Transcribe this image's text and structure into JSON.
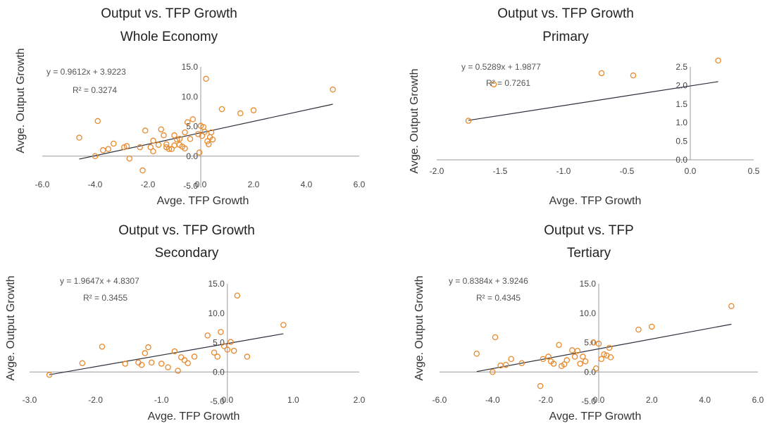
{
  "chart_data": [
    {
      "type": "scatter",
      "title": "Output vs. TFP Growth",
      "subtitle": "Whole Economy",
      "xlabel": "Avge. TFP Growth",
      "ylabel": "Avge. Output Growth",
      "xlim": [
        -6,
        6
      ],
      "ylim": [
        -5,
        15
      ],
      "xticks": [
        "-6.0",
        "-4.0",
        "-2.0",
        "0.0",
        "2.0",
        "4.0",
        "6.0"
      ],
      "yticks": [
        "-5.0",
        "0.0",
        "5.0",
        "10.0",
        "15.0"
      ],
      "equation": "y = 0.9612x + 3.9223",
      "r2_label": "R² = 0.3274",
      "trendline": {
        "slope": 0.9612,
        "intercept": 3.9223
      },
      "colors": {
        "points": "#e8892b",
        "trendline": "#2b2f3a"
      },
      "points": [
        [
          -4.6,
          3.1
        ],
        [
          -4.0,
          0.0
        ],
        [
          -3.9,
          5.9
        ],
        [
          -3.7,
          1.0
        ],
        [
          -3.5,
          1.2
        ],
        [
          -3.3,
          2.1
        ],
        [
          -2.9,
          1.5
        ],
        [
          -2.8,
          1.7
        ],
        [
          -2.7,
          -0.4
        ],
        [
          -2.3,
          1.5
        ],
        [
          -2.2,
          -2.4
        ],
        [
          -2.1,
          4.3
        ],
        [
          -1.9,
          1.5
        ],
        [
          -1.8,
          0.8
        ],
        [
          -1.8,
          2.6
        ],
        [
          -1.6,
          1.9
        ],
        [
          -1.5,
          4.5
        ],
        [
          -1.4,
          3.5
        ],
        [
          -1.3,
          2.0
        ],
        [
          -1.3,
          1.5
        ],
        [
          -1.2,
          1.2
        ],
        [
          -1.1,
          1.2
        ],
        [
          -1.0,
          3.5
        ],
        [
          -1.0,
          1.8
        ],
        [
          -0.9,
          2.8
        ],
        [
          -0.8,
          2.9
        ],
        [
          -0.8,
          1.9
        ],
        [
          -0.7,
          1.6
        ],
        [
          -0.6,
          4.0
        ],
        [
          -0.6,
          1.3
        ],
        [
          -0.5,
          5.7
        ],
        [
          -0.4,
          2.9
        ],
        [
          -0.3,
          6.2
        ],
        [
          -0.1,
          3.7
        ],
        [
          0.0,
          5.1
        ],
        [
          0.05,
          3.4
        ],
        [
          0.1,
          4.9
        ],
        [
          0.15,
          4.1
        ],
        [
          0.2,
          13.0
        ],
        [
          0.25,
          2.5
        ],
        [
          0.3,
          2.0
        ],
        [
          0.35,
          3.2
        ],
        [
          0.4,
          4.0
        ],
        [
          0.45,
          2.8
        ],
        [
          -0.05,
          0.6
        ],
        [
          0.8,
          7.9
        ],
        [
          1.5,
          7.2
        ],
        [
          2.0,
          7.7
        ],
        [
          5.0,
          11.2
        ]
      ]
    },
    {
      "type": "scatter",
      "title": "Output vs. TFP Growth",
      "subtitle": "Primary",
      "xlabel": "Avge. TFP Growth",
      "ylabel": "Avge. Output Growth",
      "xlim": [
        -2,
        0.5
      ],
      "ylim": [
        0,
        2.5
      ],
      "xticks": [
        "-2.0",
        "-1.5",
        "-1.0",
        "-0.5",
        "0.0",
        "0.5"
      ],
      "yticks": [
        "0.0",
        "0.5",
        "1.0",
        "1.5",
        "2.0",
        "2.5"
      ],
      "equation": "y = 0.5289x + 1.9877",
      "r2_label": "R² = 0.7261",
      "trendline": {
        "slope": 0.5289,
        "intercept": 1.9877
      },
      "colors": {
        "points": "#e8892b",
        "trendline": "#2b2f3a"
      },
      "points": [
        [
          -1.75,
          1.05
        ],
        [
          -1.55,
          2.03
        ],
        [
          -0.7,
          2.33
        ],
        [
          -0.45,
          2.27
        ],
        [
          0.22,
          2.67
        ]
      ]
    },
    {
      "type": "scatter",
      "title": "Output vs. TFP Growth",
      "subtitle": "Secondary",
      "xlabel": "Avge. TFP Growth",
      "ylabel": "Avge. Output Growth",
      "xlim": [
        -3,
        2
      ],
      "ylim": [
        -5,
        15
      ],
      "xticks": [
        "-3.0",
        "-2.0",
        "-1.0",
        "0.0",
        "1.0",
        "2.0"
      ],
      "yticks": [
        "-5.0",
        "0.0",
        "5.0",
        "10.0",
        "15.0"
      ],
      "equation": "y = 1.9647x + 4.8307",
      "r2_label": "R² = 0.3455",
      "trendline": {
        "slope": 1.9647,
        "intercept": 4.8307
      },
      "colors": {
        "points": "#e8892b",
        "trendline": "#2b2f3a"
      },
      "points": [
        [
          -2.7,
          -0.5
        ],
        [
          -2.2,
          1.5
        ],
        [
          -1.9,
          4.3
        ],
        [
          -1.55,
          1.4
        ],
        [
          -1.35,
          1.6
        ],
        [
          -1.3,
          1.2
        ],
        [
          -1.25,
          3.2
        ],
        [
          -1.2,
          4.2
        ],
        [
          -1.15,
          1.6
        ],
        [
          -1.0,
          1.4
        ],
        [
          -0.9,
          0.8
        ],
        [
          -0.8,
          3.5
        ],
        [
          -0.75,
          0.2
        ],
        [
          -0.7,
          2.5
        ],
        [
          -0.65,
          2.0
        ],
        [
          -0.6,
          1.5
        ],
        [
          -0.5,
          2.6
        ],
        [
          -0.3,
          6.2
        ],
        [
          -0.2,
          3.3
        ],
        [
          -0.15,
          2.6
        ],
        [
          -0.1,
          6.8
        ],
        [
          -0.05,
          4.4
        ],
        [
          0.0,
          3.8
        ],
        [
          0.05,
          5.1
        ],
        [
          0.1,
          3.6
        ],
        [
          0.15,
          13.0
        ],
        [
          0.3,
          2.6
        ],
        [
          0.85,
          8.0
        ]
      ]
    },
    {
      "type": "scatter",
      "title": "Output vs. TFP",
      "subtitle": "Tertiary",
      "xlabel": "Avge. TFP Growth",
      "ylabel": "Avge. Output Growth",
      "xlim": [
        -6,
        6
      ],
      "ylim": [
        -5,
        15
      ],
      "xticks": [
        "-6.0",
        "-4.0",
        "-2.0",
        "0.0",
        "2.0",
        "4.0",
        "6.0"
      ],
      "yticks": [
        "-5.0",
        "0.0",
        "5.0",
        "10.0",
        "15.0"
      ],
      "equation": "y = 0.8384x + 3.9246",
      "r2_label": "R² = 0.4345",
      "trendline": {
        "slope": 0.8384,
        "intercept": 3.9246
      },
      "colors": {
        "points": "#e8892b",
        "trendline": "#2b2f3a"
      },
      "points": [
        [
          -4.6,
          3.1
        ],
        [
          -4.0,
          0.0
        ],
        [
          -3.9,
          5.9
        ],
        [
          -3.7,
          1.1
        ],
        [
          -3.5,
          1.2
        ],
        [
          -3.3,
          2.2
        ],
        [
          -2.9,
          1.5
        ],
        [
          -2.2,
          -2.4
        ],
        [
          -2.1,
          2.2
        ],
        [
          -1.9,
          2.6
        ],
        [
          -1.8,
          1.8
        ],
        [
          -1.7,
          1.4
        ],
        [
          -1.5,
          4.6
        ],
        [
          -1.4,
          1.0
        ],
        [
          -1.3,
          1.3
        ],
        [
          -1.2,
          2.0
        ],
        [
          -1.0,
          3.7
        ],
        [
          -0.9,
          2.6
        ],
        [
          -0.8,
          3.6
        ],
        [
          -0.7,
          1.4
        ],
        [
          -0.6,
          2.6
        ],
        [
          -0.5,
          1.8
        ],
        [
          -0.2,
          5.0
        ],
        [
          -0.1,
          0.6
        ],
        [
          0.0,
          4.8
        ],
        [
          0.1,
          2.2
        ],
        [
          0.2,
          3.0
        ],
        [
          0.3,
          2.8
        ],
        [
          0.4,
          4.1
        ],
        [
          0.45,
          2.5
        ],
        [
          1.5,
          7.2
        ],
        [
          2.0,
          7.7
        ],
        [
          5.0,
          11.2
        ]
      ]
    }
  ]
}
